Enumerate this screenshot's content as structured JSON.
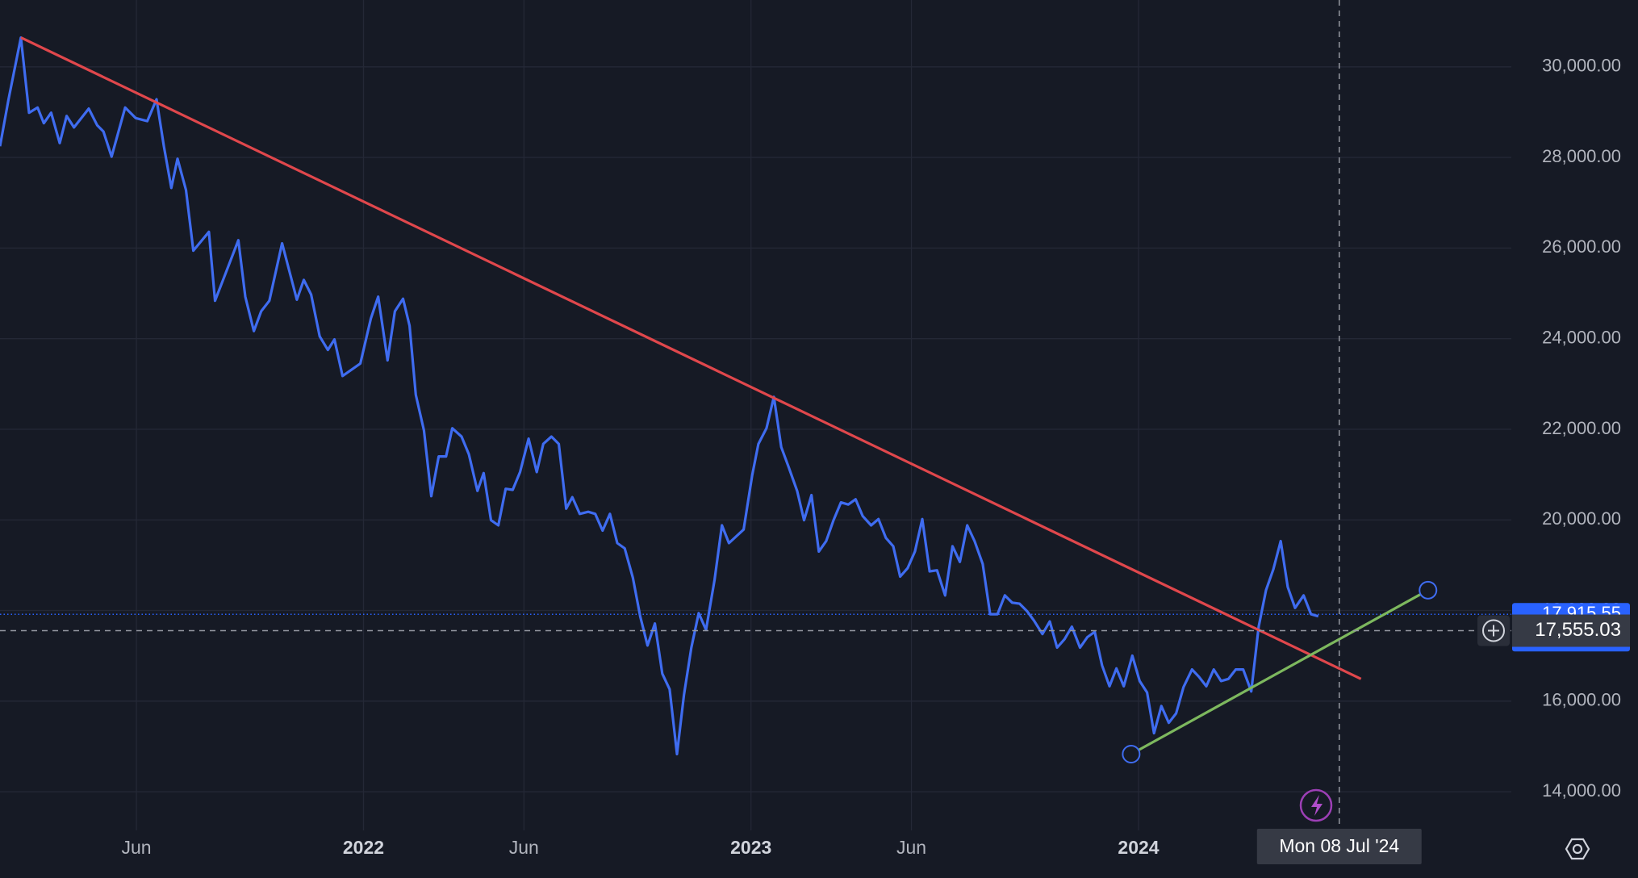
{
  "chart_data": {
    "type": "line",
    "color": "#3f6cf0",
    "x": [
      2021.062,
      2021.084,
      2021.116,
      2021.137,
      2021.159,
      2021.175,
      2021.194,
      2021.216,
      2021.234,
      2021.253,
      2021.291,
      2021.313,
      2021.329,
      2021.35,
      2021.385,
      2021.412,
      2021.442,
      2021.466,
      2021.485,
      2021.504,
      2021.52,
      2021.542,
      2021.561,
      2021.601,
      2021.617,
      2021.677,
      2021.695,
      2021.717,
      2021.736,
      2021.757,
      2021.79,
      2021.828,
      2021.846,
      2021.865,
      2021.887,
      2021.908,
      2021.925,
      2021.946,
      2021.992,
      2022.019,
      2022.038,
      2022.062,
      2022.081,
      2022.102,
      2022.119,
      2022.135,
      2022.156,
      2022.175,
      2022.194,
      2022.213,
      2022.229,
      2022.253,
      2022.272,
      2022.294,
      2022.31,
      2022.329,
      2022.348,
      2022.367,
      2022.385,
      2022.404,
      2022.426,
      2022.447,
      2022.464,
      2022.485,
      2022.504,
      2022.523,
      2022.539,
      2022.558,
      2022.58,
      2022.598,
      2022.617,
      2022.636,
      2022.655,
      2022.674,
      2022.695,
      2022.714,
      2022.733,
      2022.752,
      2022.771,
      2022.79,
      2022.809,
      2022.827,
      2022.846,
      2022.865,
      2022.884,
      2022.906,
      2022.925,
      2022.943,
      2022.981,
      2023.003,
      2023.019,
      2023.04,
      2023.059,
      2023.078,
      2023.097,
      2023.119,
      2023.137,
      2023.156,
      2023.175,
      2023.194,
      2023.213,
      2023.232,
      2023.251,
      2023.27,
      2023.288,
      2023.31,
      2023.329,
      2023.348,
      2023.367,
      2023.385,
      2023.404,
      2023.423,
      2023.442,
      2023.461,
      2023.48,
      2023.501,
      2023.52,
      2023.539,
      2023.558,
      2023.577,
      2023.598,
      2023.617,
      2023.636,
      2023.655,
      2023.674,
      2023.693,
      2023.712,
      2023.73,
      2023.752,
      2023.771,
      2023.79,
      2023.809,
      2023.828,
      2023.849,
      2023.868,
      2023.887,
      2023.906,
      2023.925,
      2023.943,
      2023.962,
      2023.984,
      2024.003,
      2024.022,
      2024.04,
      2024.059,
      2024.078,
      2024.097,
      2024.116,
      2024.138,
      2024.156,
      2024.175,
      2024.194,
      2024.213,
      2024.232,
      2024.251,
      2024.27,
      2024.291,
      2024.31,
      2024.329,
      2024.348,
      2024.367,
      2024.385,
      2024.404,
      2024.426,
      2024.445,
      2024.464
    ],
    "values": [
      28248,
      29285,
      30645,
      28986,
      29101,
      28755,
      28986,
      28317,
      28916,
      28663,
      29078,
      28709,
      28571,
      28017,
      29101,
      28870,
      28801,
      29285,
      28248,
      27326,
      27971,
      27280,
      25942,
      26357,
      24836,
      26173,
      24928,
      24167,
      24605,
      24836,
      26104,
      24859,
      25297,
      24974,
      24052,
      23752,
      23983,
      23176,
      23452,
      24444,
      24928,
      23522,
      24605,
      24882,
      24282,
      22761,
      21977,
      20524,
      21400,
      21400,
      22023,
      21839,
      21447,
      20640,
      21032,
      19994,
      19879,
      20686,
      20663,
      21055,
      21792,
      21055,
      21677,
      21839,
      21677,
      20248,
      20501,
      20133,
      20179,
      20133,
      19764,
      20133,
      19487,
      19372,
      18726,
      17873,
      17228,
      17712,
      16606,
      16260,
      14830,
      16145,
      17182,
      17942,
      17574,
      18680,
      19879,
      19487,
      19787,
      20985,
      21677,
      22023,
      22715,
      21608,
      21170,
      20640,
      19994,
      20547,
      19303,
      19533,
      19994,
      20386,
      20340,
      20455,
      20087,
      19879,
      20018,
      19602,
      19418,
      18749,
      18934,
      19303,
      20018,
      18865,
      18888,
      18334,
      19418,
      19072,
      19879,
      19533,
      19026,
      17919,
      17919,
      18334,
      18173,
      18150,
      17988,
      17781,
      17481,
      17758,
      17182,
      17366,
      17643,
      17182,
      17412,
      17528,
      16790,
      16329,
      16721,
      16329,
      17003,
      16444,
      16191,
      15291,
      15891,
      15522,
      15730,
      16306,
      16698,
      16537,
      16329,
      16698,
      16444,
      16490,
      16698,
      16698,
      16214,
      17643,
      18449,
      18911,
      19533,
      18519,
      18058,
      18334,
      17919,
      17873
    ],
    "xlim": [
      2021.062,
      2024.962
    ],
    "ylim": [
      13147,
      31475
    ],
    "xticks": [
      {
        "value": 2021.414,
        "label": "Jun"
      },
      {
        "value": 2022,
        "label": "2022"
      },
      {
        "value": 2022.414,
        "label": "Jun"
      },
      {
        "value": 2023,
        "label": "2023"
      },
      {
        "value": 2023.414,
        "label": "Jun"
      },
      {
        "value": 2024,
        "label": "2024"
      }
    ],
    "yticks": [
      {
        "value": 14000,
        "label": "14,000.00"
      },
      {
        "value": 16000,
        "label": "16,000.00"
      },
      {
        "value": 18000,
        "label": "18,000.00"
      },
      {
        "value": 20000,
        "label": "20,000.00"
      },
      {
        "value": 22000,
        "label": "22,000.00"
      },
      {
        "value": 24000,
        "label": "24,000.00"
      },
      {
        "value": 26000,
        "label": "26,000.00"
      },
      {
        "value": 28000,
        "label": "28,000.00"
      },
      {
        "value": 30000,
        "label": "30,000.00"
      }
    ],
    "grid": true,
    "trendlines": [
      {
        "color": "#e0474c",
        "x": [
          2021.116,
          2024.574
        ],
        "values": [
          30645,
          16490
        ]
      },
      {
        "color": "#7db85e",
        "x": [
          2023.981,
          2024.747
        ],
        "values": [
          14830,
          18449
        ]
      }
    ],
    "price_line": {
      "value": 17915.55,
      "label": "17,915.55",
      "color": "#2962ff"
    },
    "crosshair": {
      "y": {
        "value": 17555.03,
        "label": "17,555.03"
      },
      "x": {
        "value": 2024.518,
        "label": "Mon 08 Jul '24"
      }
    }
  }
}
